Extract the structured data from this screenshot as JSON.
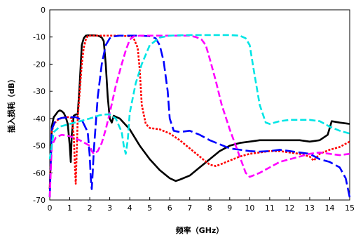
{
  "chart_data": {
    "type": "line",
    "xlabel": "频率（GHz）",
    "ylabel": "插入损耗（dB）",
    "xlim": [
      0,
      15
    ],
    "ylim": [
      -70,
      0
    ],
    "xticks": [
      0,
      1,
      2,
      3,
      4,
      5,
      6,
      7,
      8,
      9,
      10,
      11,
      12,
      13,
      14,
      15
    ],
    "yticks": [
      0,
      -10,
      -20,
      -30,
      -40,
      -50,
      -60,
      -70
    ],
    "grid": false,
    "legend": "none",
    "series": [
      {
        "color": "#000000",
        "dash": "solid",
        "x": [
          0.0,
          0.1,
          0.2,
          0.3,
          0.4,
          0.5,
          0.6,
          0.7,
          0.8,
          0.9,
          1.0,
          1.05,
          1.1,
          1.2,
          1.3,
          1.4,
          1.5,
          1.6,
          1.7,
          1.8,
          1.9,
          2.0,
          2.2,
          2.4,
          2.5,
          2.6,
          2.7,
          2.8,
          2.9,
          3.0,
          3.1,
          3.2,
          3.5,
          4.0,
          4.5,
          5.0,
          5.5,
          6.0,
          6.3,
          6.5,
          7.0,
          7.5,
          8.0,
          8.5,
          9.0,
          9.5,
          10.0,
          10.5,
          11.0,
          11.5,
          12.0,
          12.5,
          13.0,
          13.5,
          13.9,
          14.1,
          14.5,
          15.0
        ],
        "y": [
          -66,
          -43,
          -39.5,
          -38.5,
          -37.5,
          -37,
          -37.3,
          -38,
          -39.5,
          -42,
          -50,
          -56,
          -46,
          -39,
          -38.5,
          -38.5,
          -27,
          -13,
          -10.5,
          -9.5,
          -9.4,
          -9.4,
          -9.4,
          -9.5,
          -9.8,
          -10.2,
          -11.5,
          -20,
          -32,
          -40,
          -41.5,
          -39,
          -40,
          -44,
          -50,
          -55,
          -59,
          -62,
          -63,
          -62.5,
          -61,
          -58,
          -55,
          -52,
          -50,
          -49,
          -48.5,
          -48,
          -48,
          -48,
          -48,
          -48,
          -48.5,
          -48,
          -46,
          -41,
          -41.5,
          -42
        ]
      },
      {
        "color": "#ff0000",
        "dash": "dotted",
        "x": [
          0.0,
          0.1,
          0.2,
          0.4,
          0.6,
          0.8,
          1.0,
          1.1,
          1.2,
          1.25,
          1.3,
          1.4,
          1.5,
          1.6,
          1.7,
          1.8,
          1.9,
          2.0,
          2.5,
          3.0,
          3.5,
          4.0,
          4.2,
          4.4,
          4.5,
          4.6,
          4.8,
          5.0,
          5.5,
          6.0,
          6.5,
          7.0,
          7.5,
          8.0,
          8.3,
          8.5,
          9.0,
          9.5,
          10.0,
          10.5,
          11.0,
          11.5,
          12.0,
          12.5,
          13.0,
          13.2,
          13.5,
          14.0,
          14.5,
          15.0
        ],
        "y": [
          -66,
          -45,
          -42,
          -40.5,
          -39.8,
          -39.5,
          -39.5,
          -40,
          -46,
          -56,
          -64,
          -40,
          -30,
          -20,
          -14,
          -11,
          -9.6,
          -9.5,
          -9.5,
          -9.5,
          -9.5,
          -9.7,
          -10.5,
          -14,
          -22,
          -35,
          -42,
          -43.5,
          -44,
          -45.5,
          -48,
          -51,
          -54,
          -57,
          -57.5,
          -57,
          -55.5,
          -54,
          -53,
          -52.5,
          -52,
          -52,
          -52.5,
          -53,
          -54,
          -55.5,
          -53,
          -51.5,
          -50.5,
          -48.5
        ]
      },
      {
        "color": "#0000ff",
        "dash": "long-dash",
        "x": [
          0.0,
          0.1,
          0.3,
          0.6,
          1.0,
          1.3,
          1.6,
          1.9,
          2.0,
          2.05,
          2.1,
          2.15,
          2.2,
          2.4,
          2.6,
          2.8,
          3.0,
          3.2,
          3.5,
          4.0,
          4.5,
          5.0,
          5.3,
          5.5,
          5.7,
          5.9,
          6.0,
          6.2,
          6.5,
          7.0,
          7.5,
          8.0,
          8.5,
          9.0,
          9.5,
          10.0,
          10.5,
          11.0,
          11.5,
          12.0,
          12.5,
          13.0,
          13.5,
          14.0,
          14.5,
          14.8,
          15.0
        ],
        "y": [
          -69,
          -44,
          -40.5,
          -39.8,
          -39.5,
          -39.5,
          -40.5,
          -45,
          -54,
          -62,
          -66,
          -60,
          -52,
          -32,
          -20,
          -13,
          -10.5,
          -9.8,
          -9.5,
          -9.5,
          -9.5,
          -9.7,
          -10.5,
          -13,
          -19,
          -30,
          -40,
          -44.5,
          -45,
          -44.5,
          -46,
          -48,
          -49.5,
          -51,
          -51.5,
          -52,
          -52.2,
          -52,
          -51.5,
          -52,
          -52.5,
          -53,
          -55,
          -56,
          -58,
          -62,
          -69
        ]
      },
      {
        "color": "#ff00ff",
        "dash": "dashed",
        "x": [
          0.0,
          0.1,
          0.3,
          0.6,
          1.0,
          1.5,
          2.0,
          2.1,
          2.2,
          2.4,
          2.6,
          2.8,
          3.0,
          3.3,
          3.6,
          3.8,
          4.0,
          4.2,
          4.5,
          5.0,
          5.5,
          6.0,
          6.5,
          7.0,
          7.3,
          7.6,
          7.8,
          8.0,
          8.3,
          8.6,
          9.0,
          9.3,
          9.6,
          9.8,
          10.0,
          10.5,
          11.0,
          11.5,
          12.0,
          12.5,
          13.0,
          13.5,
          14.0,
          14.5,
          15.0
        ],
        "y": [
          -69,
          -50,
          -47,
          -46,
          -46.5,
          -48,
          -50,
          -52,
          -53,
          -52,
          -49,
          -44,
          -38,
          -28,
          -20,
          -15,
          -11,
          -9.8,
          -9.5,
          -9.5,
          -9.5,
          -9.5,
          -9.5,
          -9.5,
          -10,
          -11,
          -13,
          -18,
          -26,
          -35,
          -44,
          -50,
          -56,
          -60,
          -61.5,
          -60,
          -58,
          -56,
          -55,
          -54,
          -53,
          -52.5,
          -53,
          -53.5,
          -53
        ]
      },
      {
        "color": "#00e5e5",
        "dash": "dashed",
        "x": [
          0.0,
          0.2,
          0.5,
          1.0,
          1.5,
          2.0,
          2.5,
          2.8,
          3.0,
          3.3,
          3.6,
          3.7,
          3.8,
          3.9,
          4.0,
          4.3,
          4.6,
          5.0,
          5.5,
          6.0,
          7.0,
          8.0,
          9.0,
          9.5,
          9.8,
          10.0,
          10.2,
          10.5,
          10.8,
          11.0,
          11.5,
          12.0,
          12.5,
          13.0,
          13.5,
          14.0,
          14.5,
          15.0
        ],
        "y": [
          -55,
          -45,
          -43,
          -42,
          -41,
          -40,
          -38.8,
          -38.5,
          -38.5,
          -40,
          -45,
          -50,
          -53,
          -48,
          -38,
          -27,
          -20,
          -13,
          -10.2,
          -9.5,
          -9.3,
          -9.3,
          -9.3,
          -9.5,
          -10.5,
          -13,
          -22,
          -35,
          -41.5,
          -42,
          -41,
          -40.5,
          -40.5,
          -40.5,
          -41,
          -43,
          -44.5,
          -45.5
        ]
      }
    ]
  }
}
